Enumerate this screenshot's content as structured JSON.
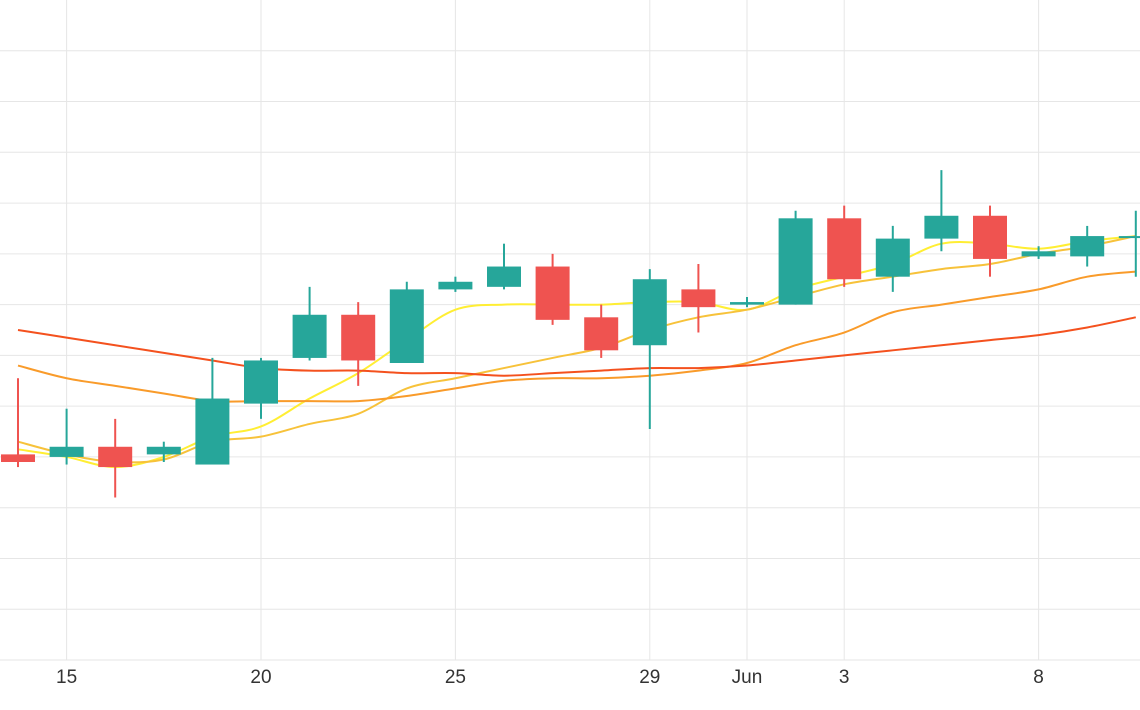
{
  "colors": {
    "up": "#26a69a",
    "down": "#ef5350",
    "grid": "#e6e6e6",
    "tick_text": "#333333"
  },
  "chart_data": {
    "type": "candlestick",
    "title": "",
    "xlabel": "",
    "ylabel": "",
    "x_ticks": [
      {
        "label": "15",
        "index": 1
      },
      {
        "label": "20",
        "index": 5
      },
      {
        "label": "25",
        "index": 9
      },
      {
        "label": "29",
        "index": 13
      },
      {
        "label": "Jun",
        "index": 15
      },
      {
        "label": "3",
        "index": 17
      },
      {
        "label": "8",
        "index": 21
      }
    ],
    "ylim": [
      0,
      13
    ],
    "y_gridlines": [
      1,
      2,
      3,
      4,
      5,
      6,
      7,
      8,
      9,
      10,
      11,
      12
    ],
    "grid": true,
    "candles": [
      {
        "open": 4.05,
        "high": 5.55,
        "low": 3.8,
        "close": 3.9
      },
      {
        "open": 4.0,
        "high": 4.95,
        "low": 3.85,
        "close": 4.2
      },
      {
        "open": 4.2,
        "high": 4.75,
        "low": 3.2,
        "close": 3.8
      },
      {
        "open": 4.05,
        "high": 4.3,
        "low": 3.9,
        "close": 4.2
      },
      {
        "open": 3.85,
        "high": 5.95,
        "low": 3.85,
        "close": 5.15
      },
      {
        "open": 5.05,
        "high": 5.95,
        "low": 4.75,
        "close": 5.9
      },
      {
        "open": 5.95,
        "high": 7.35,
        "low": 5.9,
        "close": 6.8
      },
      {
        "open": 6.8,
        "high": 7.05,
        "low": 5.4,
        "close": 5.9
      },
      {
        "open": 5.85,
        "high": 7.45,
        "low": 5.85,
        "close": 7.3
      },
      {
        "open": 7.3,
        "high": 7.55,
        "low": 7.25,
        "close": 7.45
      },
      {
        "open": 7.35,
        "high": 8.2,
        "low": 7.3,
        "close": 7.75
      },
      {
        "open": 7.75,
        "high": 8.0,
        "low": 6.6,
        "close": 6.7
      },
      {
        "open": 6.75,
        "high": 7.0,
        "low": 5.95,
        "close": 6.1
      },
      {
        "open": 6.2,
        "high": 7.7,
        "low": 4.55,
        "close": 7.5
      },
      {
        "open": 7.3,
        "high": 7.8,
        "low": 6.45,
        "close": 6.95
      },
      {
        "open": 7.0,
        "high": 7.15,
        "low": 6.95,
        "close": 7.05
      },
      {
        "open": 7.0,
        "high": 8.85,
        "low": 7.0,
        "close": 8.7
      },
      {
        "open": 8.7,
        "high": 8.95,
        "low": 7.35,
        "close": 7.5
      },
      {
        "open": 7.55,
        "high": 8.55,
        "low": 7.25,
        "close": 8.3
      },
      {
        "open": 8.3,
        "high": 9.65,
        "low": 8.05,
        "close": 8.75
      },
      {
        "open": 8.75,
        "high": 8.95,
        "low": 7.55,
        "close": 7.9
      },
      {
        "open": 7.95,
        "high": 8.15,
        "low": 7.9,
        "close": 8.05
      },
      {
        "open": 7.95,
        "high": 8.55,
        "low": 7.75,
        "close": 8.35
      },
      {
        "open": 8.35,
        "high": 8.85,
        "low": 7.55,
        "close": 8.35
      }
    ],
    "moving_averages": [
      {
        "color": "#ffee33",
        "values": [
          4.15,
          4.0,
          3.8,
          4.0,
          4.4,
          4.6,
          5.15,
          5.65,
          6.3,
          6.9,
          7.0,
          7.0,
          7.0,
          7.05,
          7.05,
          6.9,
          7.3,
          7.55,
          7.8,
          8.2,
          8.2,
          8.1,
          8.25,
          8.35
        ]
      },
      {
        "color": "#f7c23a",
        "values": [
          4.3,
          4.05,
          3.9,
          3.95,
          4.3,
          4.4,
          4.65,
          4.85,
          5.35,
          5.55,
          5.75,
          5.95,
          6.15,
          6.5,
          6.75,
          6.9,
          7.15,
          7.4,
          7.55,
          7.7,
          7.8,
          8.0,
          8.15,
          8.35
        ]
      },
      {
        "color": "#f99b2a",
        "values": [
          5.8,
          5.55,
          5.4,
          5.25,
          5.1,
          5.1,
          5.1,
          5.1,
          5.2,
          5.35,
          5.5,
          5.55,
          5.55,
          5.6,
          5.7,
          5.85,
          6.2,
          6.45,
          6.85,
          7.0,
          7.15,
          7.3,
          7.55,
          7.65
        ]
      },
      {
        "color": "#f4511e",
        "values": [
          6.5,
          6.35,
          6.2,
          6.05,
          5.9,
          5.75,
          5.7,
          5.7,
          5.65,
          5.65,
          5.6,
          5.65,
          5.7,
          5.75,
          5.75,
          5.8,
          5.9,
          6.0,
          6.1,
          6.2,
          6.3,
          6.4,
          6.55,
          6.75
        ]
      }
    ]
  }
}
